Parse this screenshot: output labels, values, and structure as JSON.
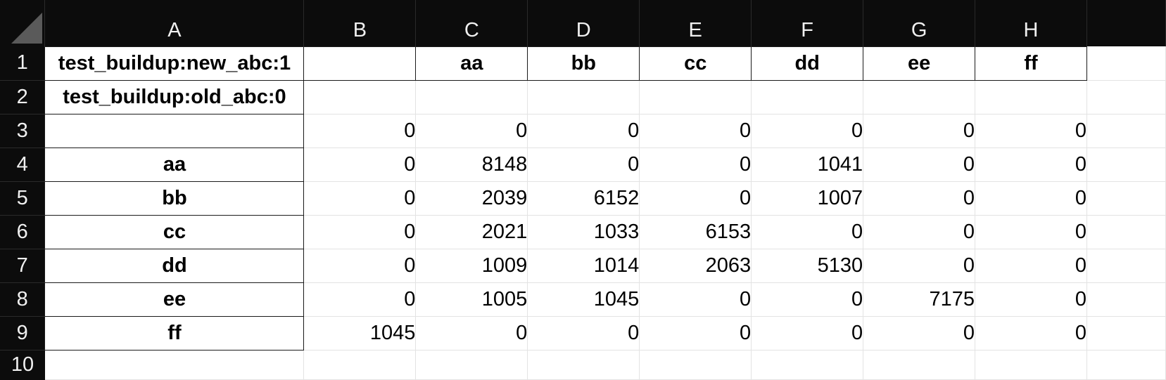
{
  "columns": [
    "A",
    "B",
    "C",
    "D",
    "E",
    "F",
    "G",
    "H"
  ],
  "rows": [
    "1",
    "2",
    "3",
    "4",
    "5",
    "6",
    "7",
    "8",
    "9",
    "10"
  ],
  "cells": {
    "A1": "test_buildup:new_abc:1",
    "A2": "test_buildup:old_abc:0",
    "C1": "aa",
    "D1": "bb",
    "E1": "cc",
    "F1": "dd",
    "G1": "ee",
    "H1": "ff",
    "A4": "aa",
    "A5": "bb",
    "A6": "cc",
    "A7": "dd",
    "A8": "ee",
    "A9": "ff",
    "B3": "0",
    "C3": "0",
    "D3": "0",
    "E3": "0",
    "F3": "0",
    "G3": "0",
    "H3": "0",
    "B4": "0",
    "C4": "8148",
    "D4": "0",
    "E4": "0",
    "F4": "1041",
    "G4": "0",
    "H4": "0",
    "B5": "0",
    "C5": "2039",
    "D5": "6152",
    "E5": "0",
    "F5": "1007",
    "G5": "0",
    "H5": "0",
    "B6": "0",
    "C6": "2021",
    "D6": "1033",
    "E6": "6153",
    "F6": "0",
    "G6": "0",
    "H6": "0",
    "B7": "0",
    "C7": "1009",
    "D7": "1014",
    "E7": "2063",
    "F7": "5130",
    "G7": "0",
    "H7": "0",
    "B8": "0",
    "C8": "1005",
    "D8": "1045",
    "E8": "0",
    "F8": "0",
    "G8": "7175",
    "H8": "0",
    "B9": "1045",
    "C9": "0",
    "D9": "0",
    "E9": "0",
    "F9": "0",
    "G9": "0",
    "H9": "0"
  }
}
